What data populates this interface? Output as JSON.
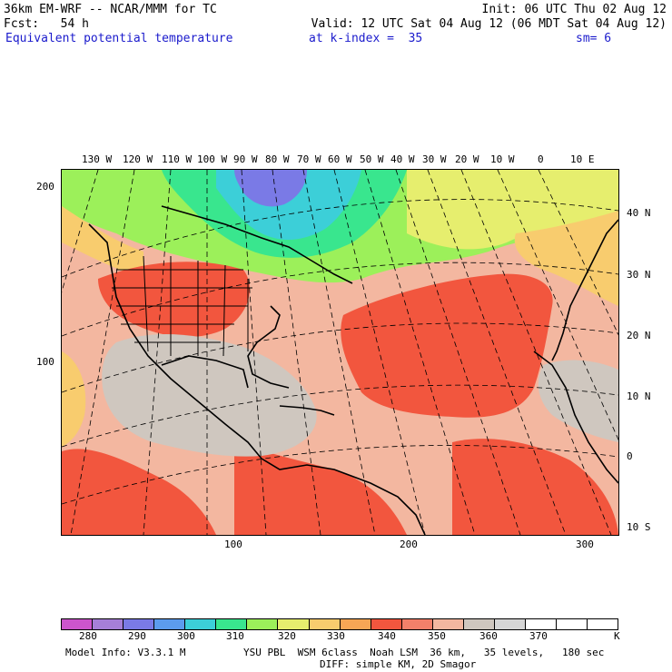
{
  "header": {
    "line1_left": "36km EM-WRF -- NCAR/MMM for TC",
    "line1_right": "Init: 06 UTC Thu 02 Aug 12",
    "line2_left": "Fcst:   54 h",
    "line2_right": "Valid: 12 UTC Sat 04 Aug 12 (06 MDT Sat 04 Aug 12)",
    "field_name": "Equivalent potential temperature",
    "level_label": "at k-index =  35",
    "smoothing": "sm= 6"
  },
  "map": {
    "top_lon_labels": [
      "130 W",
      "120 W",
      "110 W",
      "100 W",
      "90 W",
      "80 W",
      "70 W",
      "60 W",
      "50 W",
      "40 W",
      "30 W",
      "20 W",
      "10 W",
      "0",
      "10 E"
    ],
    "right_lat_labels": [
      "40 N",
      "30 N",
      "20 N",
      "10 N",
      "0",
      "10 S"
    ],
    "left_grid_labels": [
      "200",
      "100"
    ],
    "bottom_grid_labels": [
      "100",
      "200",
      "300"
    ]
  },
  "colorbar": {
    "labels": [
      "280",
      "290",
      "300",
      "310",
      "320",
      "330",
      "340",
      "350",
      "360",
      "370",
      "K"
    ],
    "colors": [
      "#cc55cc",
      "#a67fd8",
      "#7a7ae6",
      "#5c9cee",
      "#3ccfd8",
      "#39e68e",
      "#9cf05a",
      "#e6ee6e",
      "#f8cc6e",
      "#f7a655",
      "#f2563e",
      "#f3806a",
      "#f3b7a0",
      "#cfc7bf",
      "#d6d6d6",
      "#ffffff",
      "#ffffff",
      "#ffffff"
    ]
  },
  "footer": {
    "model_info": "Model Info: V3.3.1 M",
    "physics": "YSU PBL  WSM 6class  Noah LSM  36 km,   35 levels,   180 sec",
    "diffusion": "DIFF: simple KM, 2D Smagor"
  }
}
